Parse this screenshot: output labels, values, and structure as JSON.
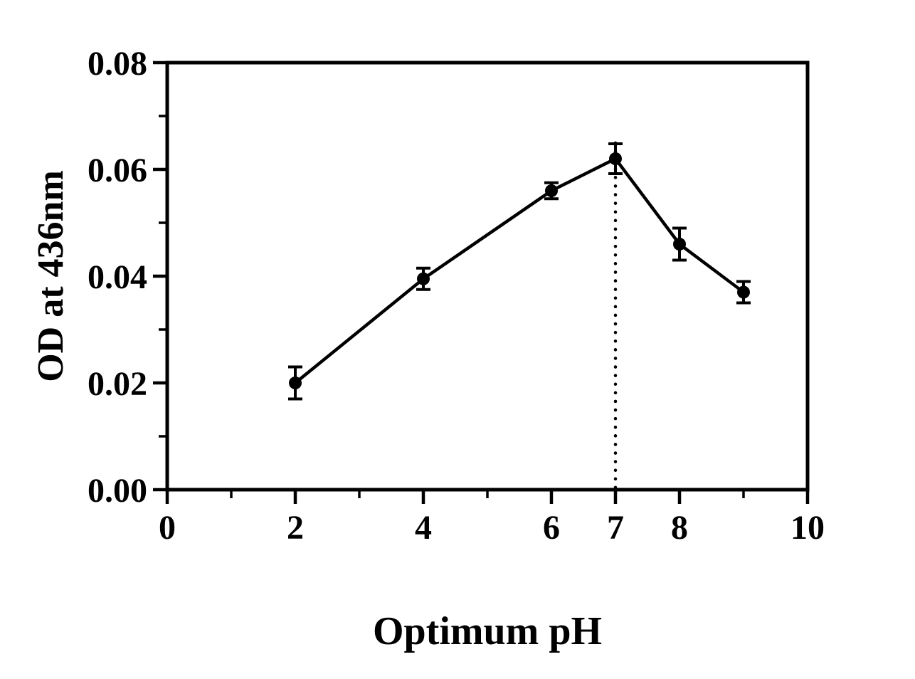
{
  "chart_data": {
    "type": "line",
    "title": "",
    "xlabel": "Optimum pH",
    "ylabel": "OD at 436nm",
    "x": [
      2,
      4,
      6,
      7,
      8,
      9
    ],
    "y": [
      0.02,
      0.0395,
      0.056,
      0.062,
      0.046,
      0.037
    ],
    "yerr": [
      0.003,
      0.002,
      0.0015,
      0.0028,
      0.003,
      0.002
    ],
    "xlim": [
      0,
      10
    ],
    "ylim": [
      0,
      0.08
    ],
    "x_major_ticks": [
      0,
      2,
      4,
      6,
      7,
      8,
      10
    ],
    "x_tick_labels": [
      "0",
      "2",
      "4",
      "6",
      "7",
      "8",
      "10"
    ],
    "x_minor_ticks": [
      1,
      3,
      5,
      9
    ],
    "y_major_ticks": [
      0,
      0.02,
      0.04,
      0.06,
      0.08
    ],
    "y_tick_labels": [
      "0.00",
      "0.02",
      "0.04",
      "0.06",
      "0.08"
    ],
    "y_minor_ticks": [
      0.01,
      0.03,
      0.05,
      0.07
    ],
    "vline": {
      "x": 7,
      "y_top": 0.0665,
      "style": "dotted"
    },
    "line_color": "#000000",
    "marker": "circle",
    "marker_color": "#000000",
    "grid": false,
    "legend": null
  }
}
